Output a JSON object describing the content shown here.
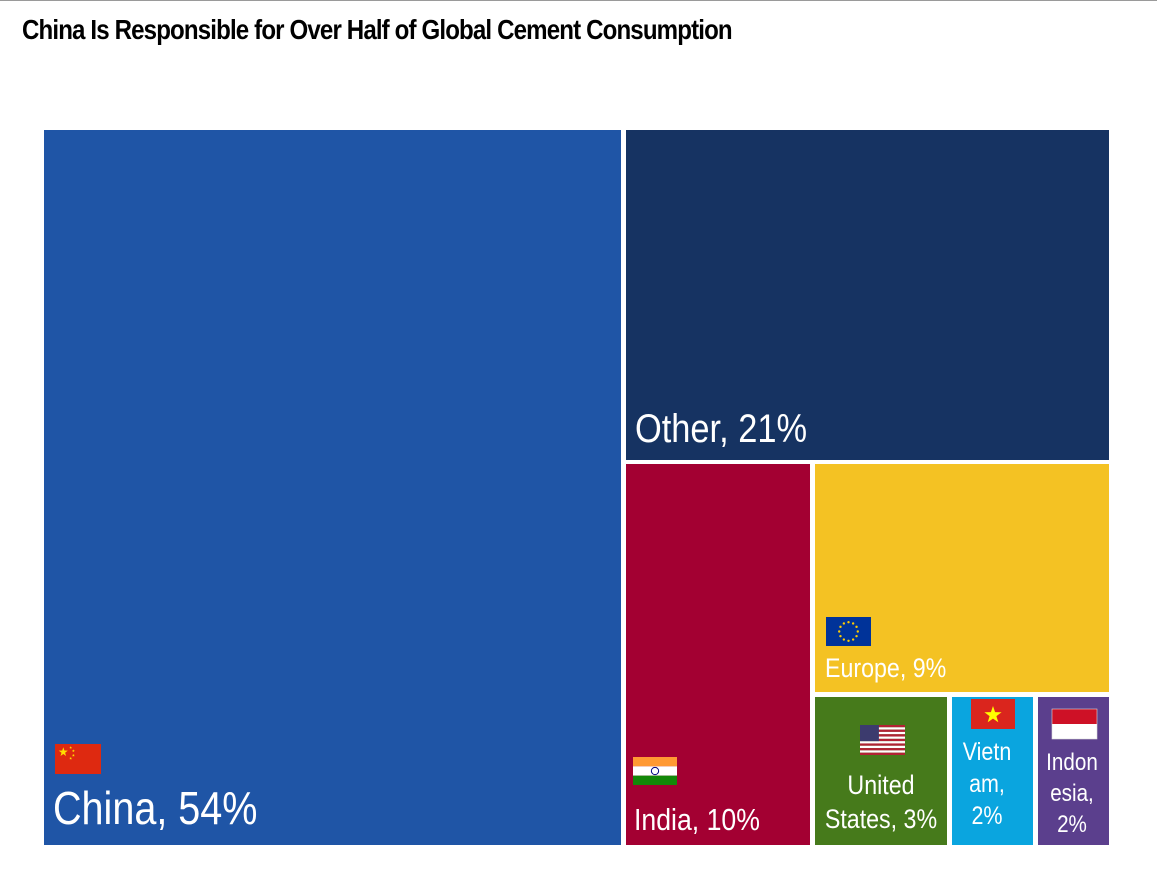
{
  "title": "China Is Responsible for Over Half of Global Cement Consumption",
  "chart_data": {
    "type": "treemap",
    "title": "China Is Responsible for Over Half of Global Cement Consumption",
    "unit": "%",
    "items": [
      {
        "name": "China",
        "value": 54,
        "label_lines": [
          "China, 54%"
        ],
        "color": "#1f55a6",
        "text_color": "#ffffff",
        "flag": "china-flag"
      },
      {
        "name": "Other",
        "value": 21,
        "label_lines": [
          "Other, 21%"
        ],
        "color": "#163362",
        "text_color": "#ffffff",
        "flag": null
      },
      {
        "name": "India",
        "value": 10,
        "label_lines": [
          "India, 10%"
        ],
        "color": "#a30032",
        "text_color": "#ffffff",
        "flag": "india-flag"
      },
      {
        "name": "Europe",
        "value": 9,
        "label_lines": [
          "Europe, 9%"
        ],
        "color": "#f4c223",
        "text_color": "#ffffff",
        "flag": "eu-flag"
      },
      {
        "name": "United States",
        "value": 3,
        "label_lines": [
          "United",
          "States, 3%"
        ],
        "color": "#467a1b",
        "text_color": "#ffffff",
        "flag": "us-flag"
      },
      {
        "name": "Vietnam",
        "value": 2,
        "label_lines": [
          "Vietn",
          "am,",
          "2%"
        ],
        "color": "#0aa5df",
        "text_color": "#ffffff",
        "flag": "vietnam-flag"
      },
      {
        "name": "Indonesia",
        "value": 2,
        "label_lines": [
          "Indon",
          "esia,",
          "2%"
        ],
        "color": "#5b3f8d",
        "text_color": "#ffffff",
        "flag": "indonesia-flag"
      }
    ]
  }
}
